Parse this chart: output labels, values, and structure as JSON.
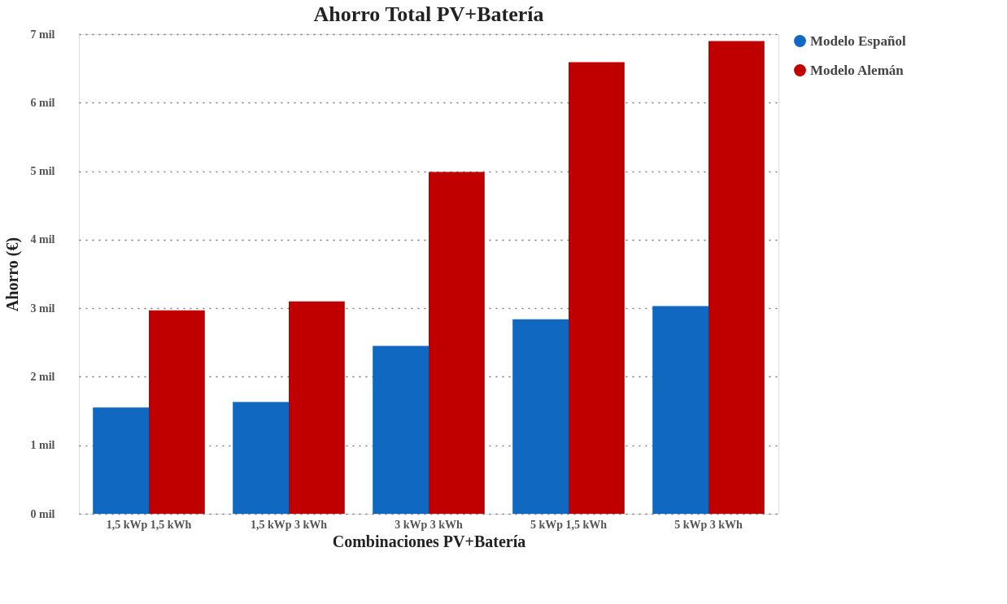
{
  "chart_data": {
    "type": "bar",
    "title": "Ahorro Total PV+Batería",
    "xlabel": "Combinaciones PV+Batería",
    "ylabel": "Ahorro (€)",
    "categories": [
      "1,5 kWp 1,5 kWh",
      "1,5 kWp 3 kWh",
      "3 kWp 3 kWh",
      "5 kWp 1,5 kWh",
      "5 kWp 3 kWh"
    ],
    "series": [
      {
        "name": "Modelo Español",
        "color": "#1068c0",
        "values": [
          1.55,
          1.63,
          2.45,
          2.84,
          3.03
        ]
      },
      {
        "name": "Modelo Alemán",
        "color": "#c00000",
        "values": [
          2.97,
          3.1,
          4.99,
          6.59,
          6.9
        ]
      }
    ],
    "ylim": [
      0,
      7
    ],
    "yticks": [
      {
        "value": 0,
        "label": "0 mil"
      },
      {
        "value": 1,
        "label": "1 mil"
      },
      {
        "value": 2,
        "label": "2 mil"
      },
      {
        "value": 3,
        "label": "3 mil"
      },
      {
        "value": 4,
        "label": "4 mil"
      },
      {
        "value": 5,
        "label": "5 mil"
      },
      {
        "value": 6,
        "label": "6 mil"
      },
      {
        "value": 7,
        "label": "7 mil"
      }
    ],
    "grid": "y",
    "legend": "right"
  }
}
